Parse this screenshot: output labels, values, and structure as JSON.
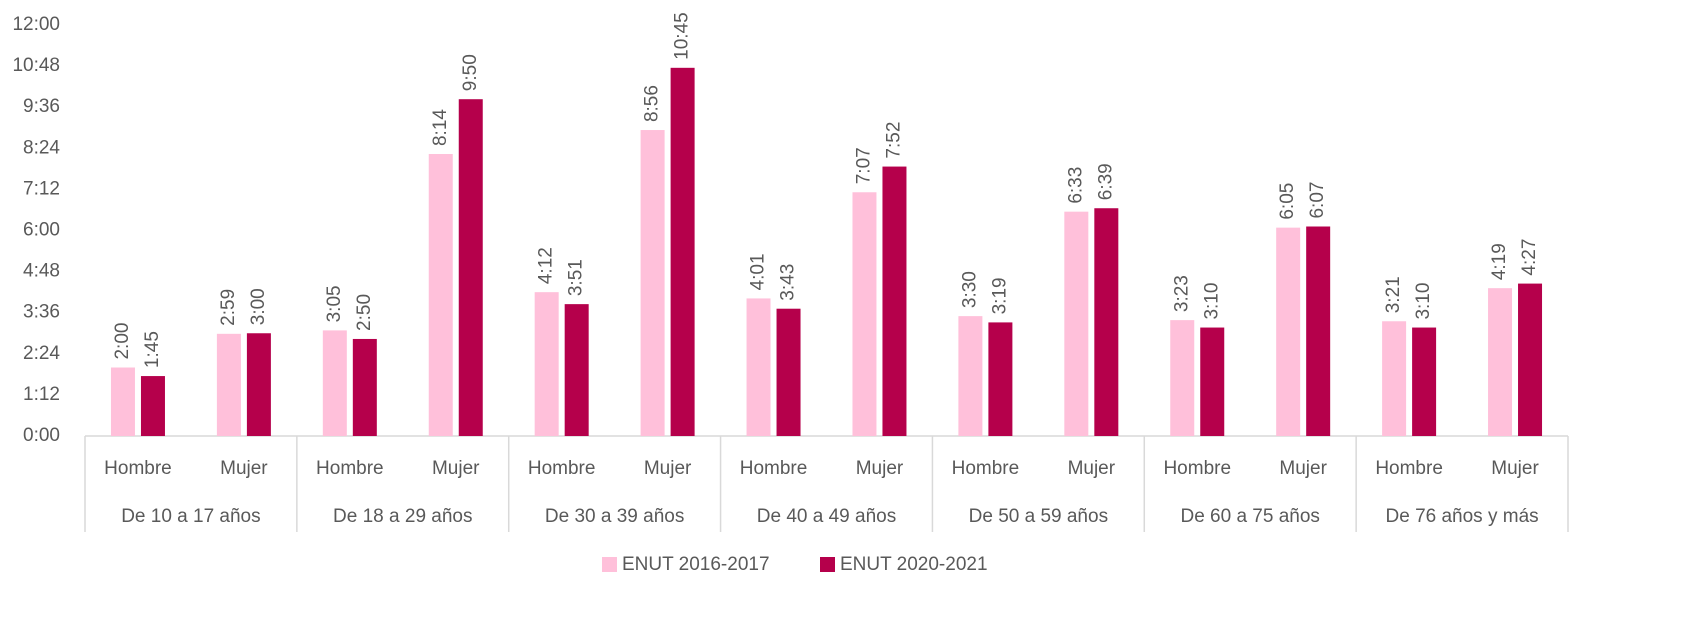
{
  "chart_data": {
    "type": "bar",
    "categories": [
      "Hombre",
      "Mujer",
      "Hombre",
      "Mujer",
      "Hombre",
      "Mujer",
      "Hombre",
      "Mujer",
      "Hombre",
      "Mujer",
      "Hombre",
      "Mujer",
      "Hombre",
      "Mujer"
    ],
    "groups": [
      "De 10 a 17 años",
      "De 18 a 29 años",
      "De 30 a 39 años",
      "De 40 a 49 años",
      "De 50 a 59 años",
      "De 60 a 75 años",
      "De 76 años y más"
    ],
    "series": [
      {
        "name": "ENUT 2016-2017",
        "color": "#ffc0da",
        "values": [
          120,
          179,
          185,
          494,
          252,
          536,
          241,
          427,
          210,
          393,
          203,
          365,
          201,
          259
        ],
        "value_labels": [
          "2:00",
          "2:59",
          "3:05",
          "8:14",
          "4:12",
          "8:56",
          "4:01",
          "7:07",
          "3:30",
          "6:33",
          "3:23",
          "6:05",
          "3:21",
          "4:19"
        ]
      },
      {
        "name": "ENUT 2020-2021",
        "color": "#b5004b",
        "values": [
          105,
          180,
          170,
          590,
          231,
          645,
          223,
          472,
          199,
          399,
          190,
          367,
          190,
          267
        ],
        "value_labels": [
          "1:45",
          "3:00",
          "2:50",
          "9:50",
          "3:51",
          "10:45",
          "3:43",
          "7:52",
          "3:19",
          "6:39",
          "3:10",
          "6:07",
          "3:10",
          "4:27"
        ]
      }
    ],
    "ylim": [
      0,
      720
    ],
    "yticks": [
      {
        "value": 0,
        "label": "0:00"
      },
      {
        "value": 72,
        "label": "1:12"
      },
      {
        "value": 144,
        "label": "2:24"
      },
      {
        "value": 216,
        "label": "3:36"
      },
      {
        "value": 288,
        "label": "4:48"
      },
      {
        "value": 360,
        "label": "6:00"
      },
      {
        "value": 432,
        "label": "7:12"
      },
      {
        "value": 504,
        "label": "8:24"
      },
      {
        "value": 576,
        "label": "9:36"
      },
      {
        "value": 648,
        "label": "10:48"
      },
      {
        "value": 720,
        "label": "12:00"
      }
    ],
    "legend": "bottom"
  }
}
